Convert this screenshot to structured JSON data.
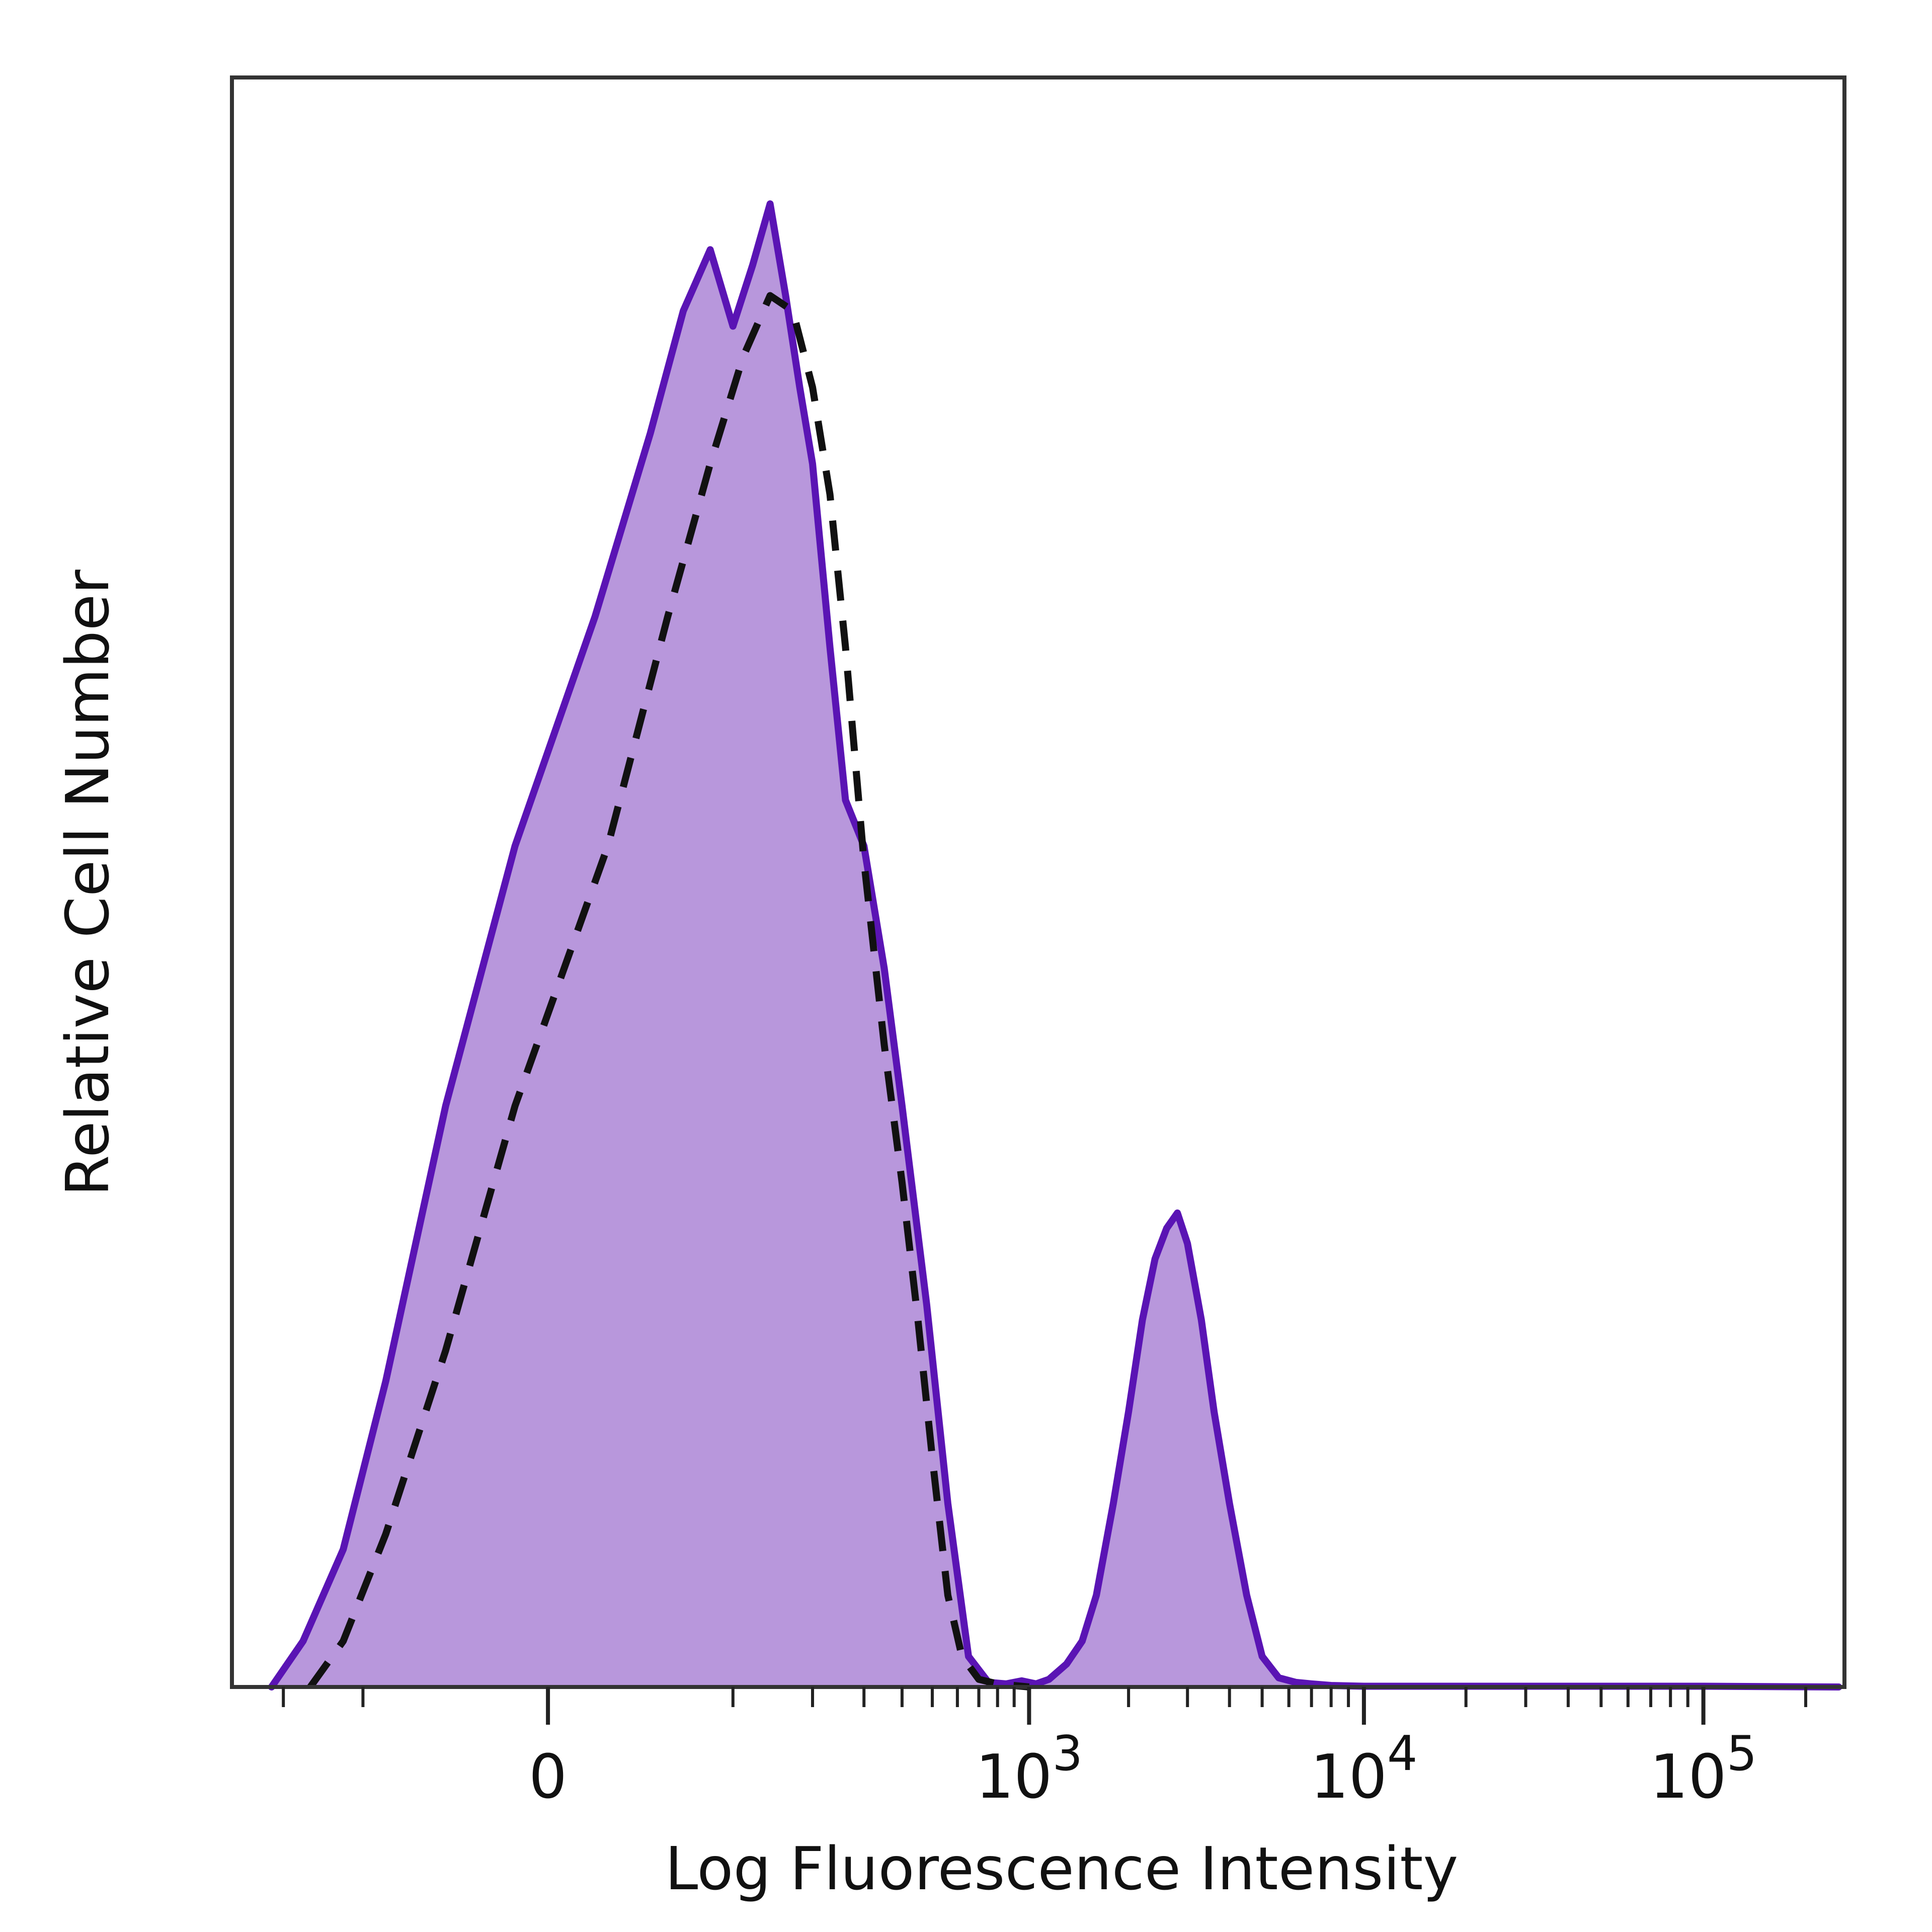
{
  "chart_data": {
    "type": "area",
    "title": "",
    "xlabel": "Log Fluorescence Intensity",
    "ylabel": "Relative Cell Number",
    "x_scale": "biexponential",
    "x_ticks": [
      {
        "value": 0,
        "label": "0",
        "sup": ""
      },
      {
        "value": 1000,
        "label": "10",
        "sup": "3"
      },
      {
        "value": 10000,
        "label": "10",
        "sup": "4"
      },
      {
        "value": 100000,
        "label": "10",
        "sup": "5"
      }
    ],
    "xlim": [
      -300,
      260000
    ],
    "ylim": [
      0,
      100
    ],
    "grid": false,
    "legend": "none",
    "colors": {
      "stained_fill": "#b897dc",
      "stained_line": "#5a14b4",
      "control_line": "#111111",
      "frame": "#333333"
    },
    "series": [
      {
        "style": "filled-solid",
        "x": [
          -220,
          -170,
          -120,
          -80,
          -40,
          -10,
          15,
          40,
          60,
          80,
          100,
          120,
          140,
          160,
          180,
          200,
          230,
          260,
          300,
          350,
          400,
          480,
          560,
          650,
          750,
          850,
          950,
          1050,
          1150,
          1300,
          1450,
          1600,
          1800,
          2000,
          2200,
          2400,
          2600,
          2800,
          3000,
          3300,
          3600,
          4000,
          4500,
          5000,
          5600,
          6300,
          7000,
          8000,
          10000,
          15000,
          30000,
          100000,
          250000
        ],
        "y": [
          0,
          3,
          9,
          20,
          38,
          55,
          70,
          82,
          90,
          94,
          89,
          93,
          97,
          91,
          85,
          80,
          68,
          58,
          55,
          47,
          38,
          25,
          12,
          2,
          0.3,
          0.2,
          0.4,
          0.2,
          0.5,
          1.5,
          3,
          6,
          12,
          18,
          24,
          28,
          30,
          31,
          29,
          24,
          18,
          12,
          6,
          2,
          0.6,
          0.3,
          0.2,
          0.1,
          0.05,
          0.05,
          0.05,
          0.05,
          0
        ]
      },
      {
        "style": "dashed",
        "x": [
          -160,
          -120,
          -80,
          -40,
          -10,
          20,
          50,
          80,
          110,
          140,
          170,
          200,
          230,
          260,
          300,
          350,
          400,
          450,
          500,
          560,
          620,
          700,
          800,
          1000
        ],
        "y": [
          0,
          3,
          10,
          22,
          38,
          55,
          70,
          80,
          87,
          91,
          90,
          85,
          78,
          68,
          54,
          42,
          33,
          24,
          15,
          6,
          2,
          0.5,
          0.2,
          0
        ]
      }
    ]
  }
}
